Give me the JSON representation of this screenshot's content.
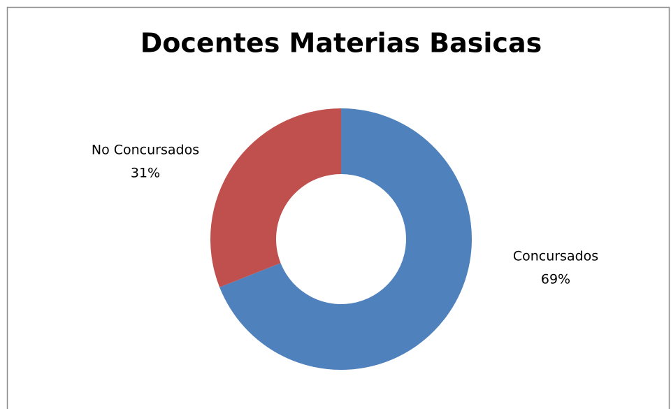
{
  "chart_data": {
    "type": "donut",
    "title": "Docentes Materias Basicas",
    "categories": [
      "Concursados",
      "No Concursados"
    ],
    "values": [
      69,
      31
    ],
    "value_labels": [
      "69%",
      "31%"
    ],
    "colors": [
      "#4f81bd",
      "#c0504d"
    ]
  }
}
